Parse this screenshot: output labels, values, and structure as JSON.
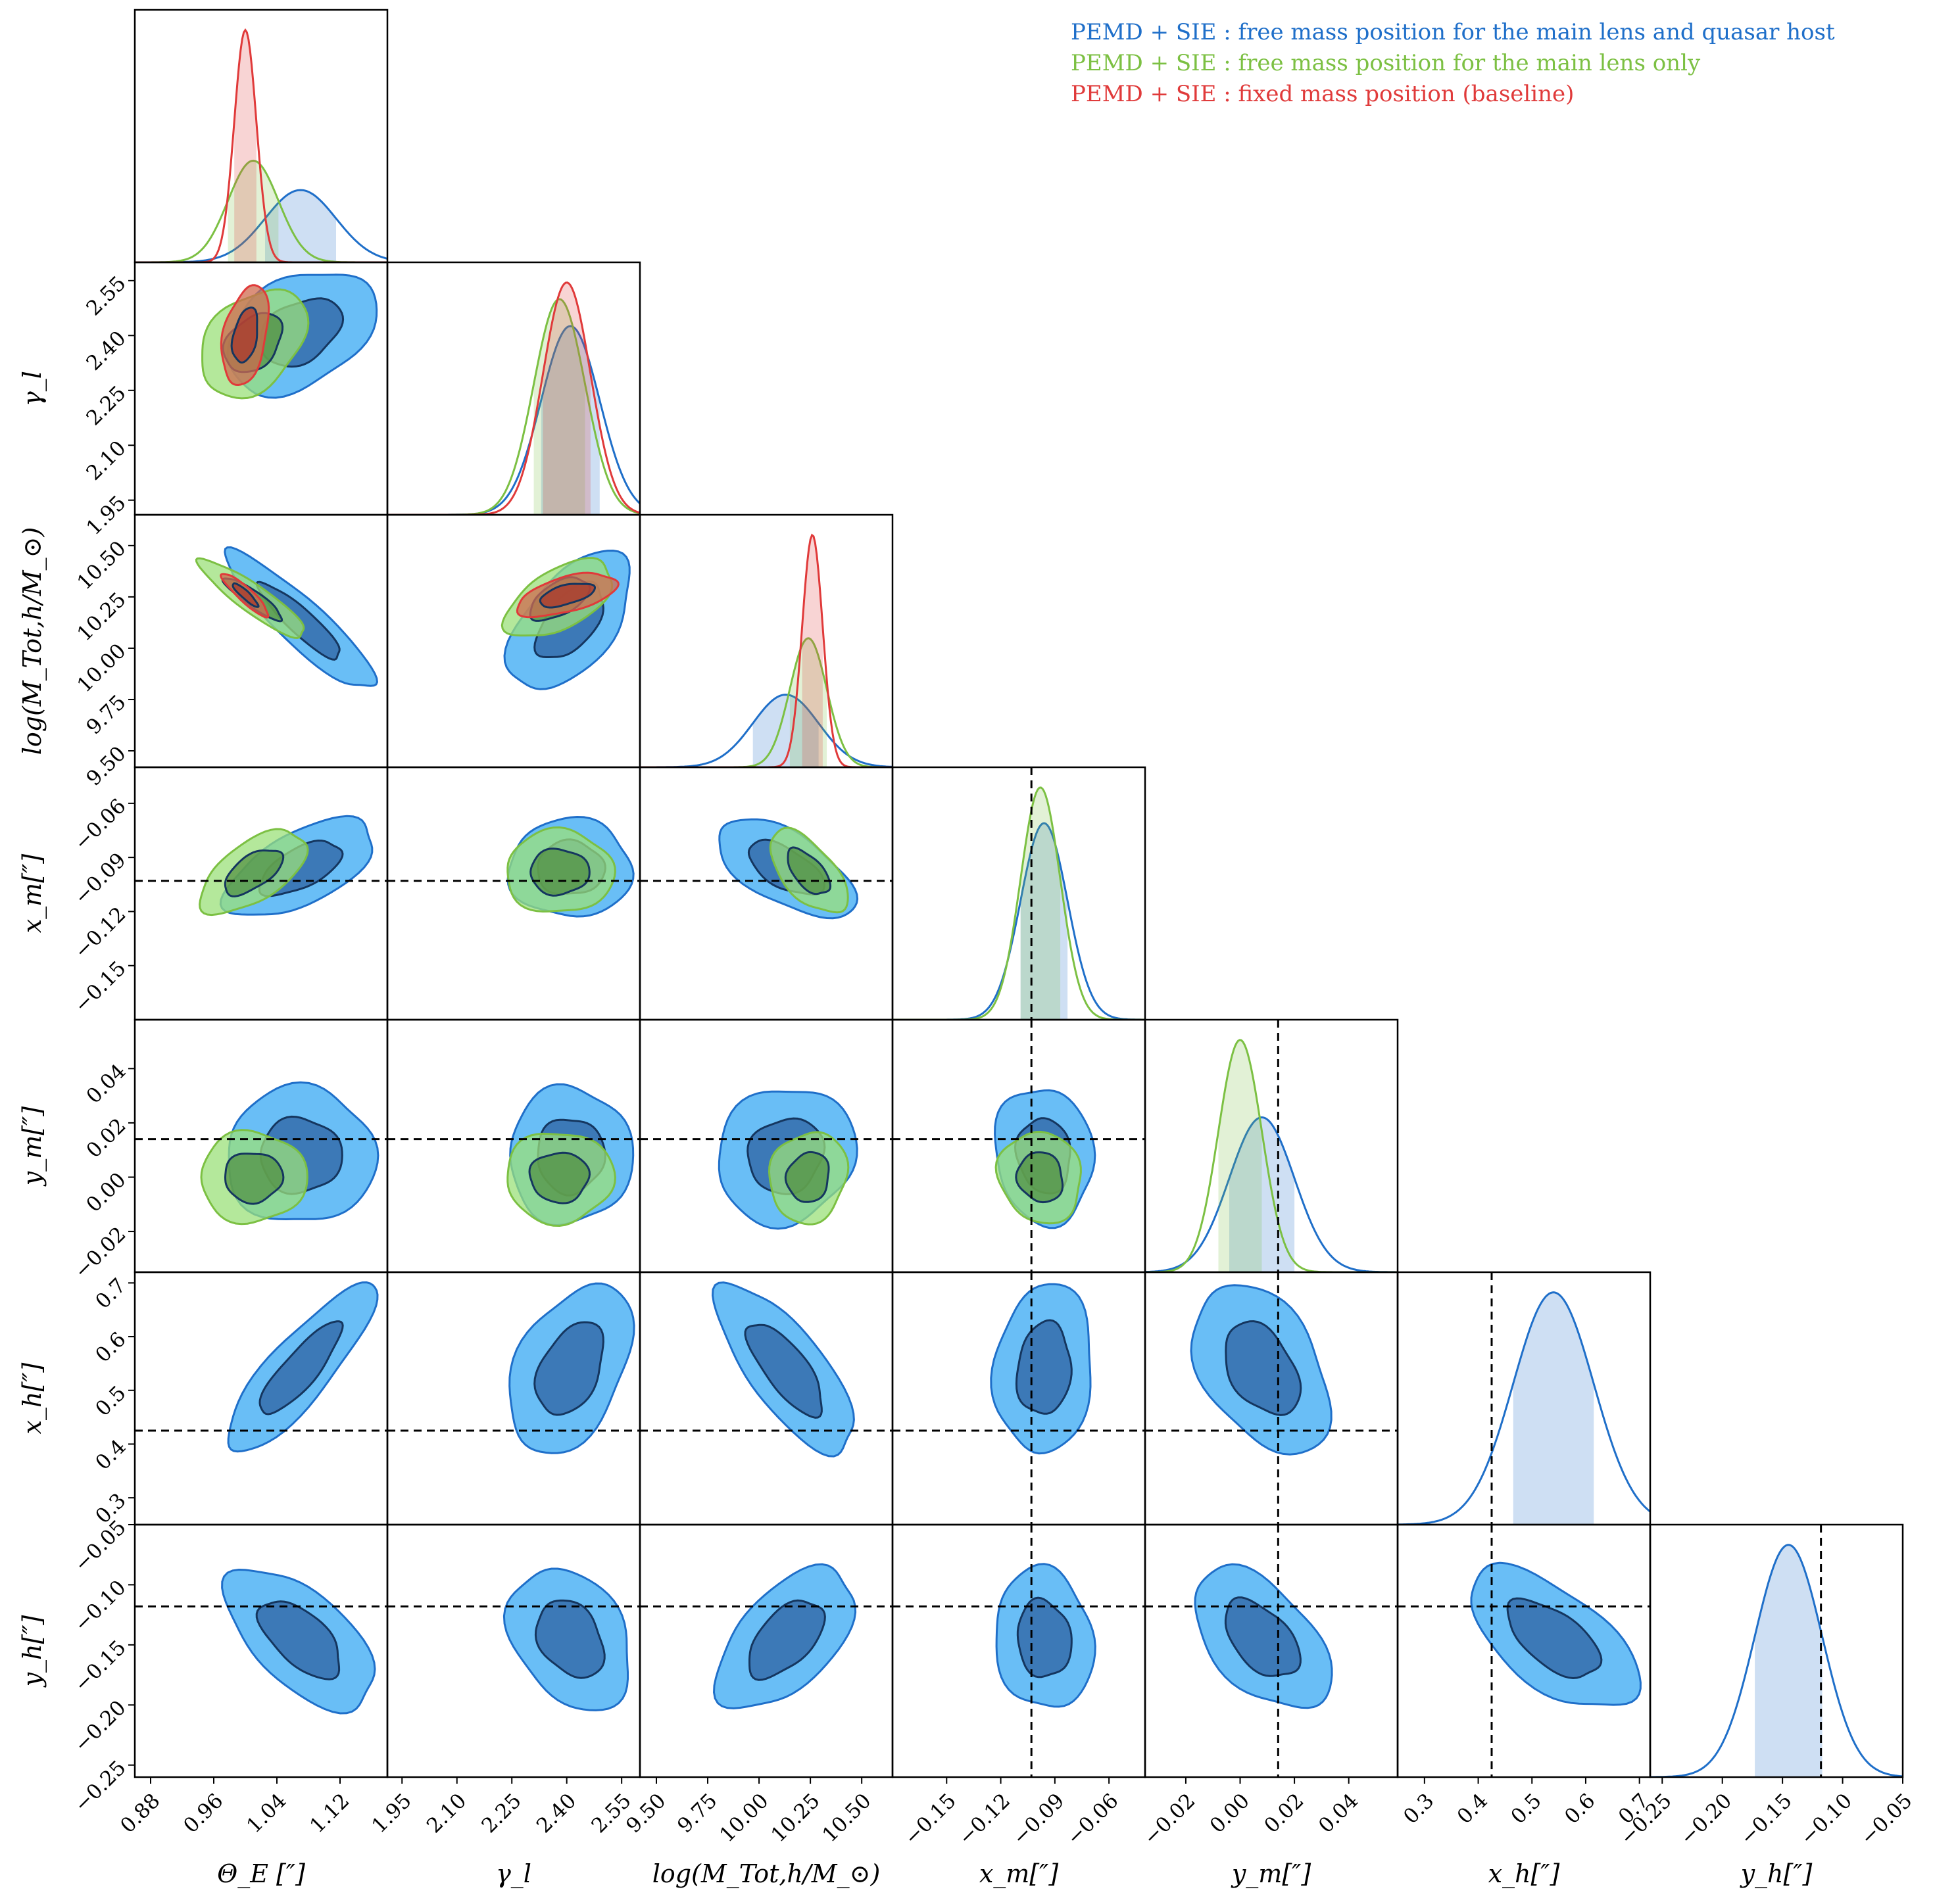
{
  "chart_data": {
    "type": "corner",
    "parameters": [
      {
        "key": "theta_E",
        "label": "Θ_E [″]",
        "ticks": [
          "0.88",
          "0.96",
          "1.04",
          "1.12"
        ],
        "tick_values": [
          0.88,
          0.96,
          1.04,
          1.12
        ],
        "range": [
          0.86,
          1.18
        ]
      },
      {
        "key": "gamma_l",
        "label": "γ_l",
        "ticks": [
          "1.95",
          "2.10",
          "2.25",
          "2.40",
          "2.55"
        ],
        "tick_values": [
          1.95,
          2.1,
          2.25,
          2.4,
          2.55
        ],
        "range": [
          1.91,
          2.6
        ]
      },
      {
        "key": "logM",
        "label": "log(M_Tot,h/M_⊙)",
        "ticks": [
          "9.50",
          "9.75",
          "10.00",
          "10.25",
          "10.50"
        ],
        "tick_values": [
          9.5,
          9.75,
          10.0,
          10.25,
          10.5
        ],
        "range": [
          9.42,
          10.65
        ]
      },
      {
        "key": "x_m",
        "label": "x_m[″]",
        "ticks": [
          "−0.15",
          "−0.12",
          "−0.09",
          "−0.06"
        ],
        "tick_values": [
          -0.15,
          -0.12,
          -0.09,
          -0.06
        ],
        "range": [
          -0.18,
          -0.04
        ]
      },
      {
        "key": "y_m",
        "label": "y_m[″]",
        "ticks": [
          "−0.02",
          "0.00",
          "0.02",
          "0.04"
        ],
        "tick_values": [
          -0.02,
          0.0,
          0.02,
          0.04
        ],
        "range": [
          -0.035,
          0.058
        ]
      },
      {
        "key": "x_h",
        "label": "x_h[″]",
        "ticks": [
          "0.3",
          "0.4",
          "0.5",
          "0.6",
          "0.7"
        ],
        "tick_values": [
          0.3,
          0.4,
          0.5,
          0.6,
          0.7
        ],
        "range": [
          0.25,
          0.72
        ]
      },
      {
        "key": "y_h",
        "label": "y_h[″]",
        "ticks": [
          "−0.25",
          "−0.20",
          "−0.15",
          "−0.10",
          "−0.05"
        ],
        "tick_values": [
          -0.25,
          -0.2,
          -0.15,
          -0.1,
          -0.05
        ],
        "range": [
          -0.26,
          -0.05
        ]
      }
    ],
    "truth_values": {
      "x_m": -0.103,
      "y_m": 0.014,
      "x_h": 0.425,
      "y_h": -0.118
    },
    "series": [
      {
        "name": "PEMD + SIE : free mass position for the main lens and quasar host",
        "color": "#1f6fc9",
        "fill": "#4fb3f5",
        "params": [
          "theta_E",
          "gamma_l",
          "logM",
          "x_m",
          "y_m",
          "x_h",
          "y_h"
        ],
        "mean": {
          "theta_E": 1.07,
          "gamma_l": 2.41,
          "logM": 10.13,
          "x_m": -0.096,
          "y_m": 0.008,
          "x_h": 0.54,
          "y_h": -0.145
        },
        "sigma": {
          "theta_E": 0.045,
          "gamma_l": 0.08,
          "logM": 0.16,
          "x_m": 0.013,
          "y_m": 0.012,
          "x_h": 0.075,
          "y_h": 0.028
        }
      },
      {
        "name": "PEMD + SIE : free mass position for the main lens only",
        "color": "#7cc043",
        "fill": "#9be07a",
        "params": [
          "theta_E",
          "gamma_l",
          "logM",
          "x_m",
          "y_m"
        ],
        "mean": {
          "theta_E": 1.01,
          "gamma_l": 2.38,
          "logM": 10.24,
          "x_m": -0.098,
          "y_m": 0.0
        },
        "sigma": {
          "theta_E": 0.032,
          "gamma_l": 0.07,
          "logM": 0.09,
          "x_m": 0.011,
          "y_m": 0.008
        }
      },
      {
        "name": "PEMD + SIE : fixed mass position (baseline)",
        "color": "#e03a3a",
        "fill": "#cf6b4f",
        "params": [
          "theta_E",
          "gamma_l",
          "logM"
        ],
        "mean": {
          "theta_E": 1.0,
          "gamma_l": 2.4,
          "logM": 10.26
        },
        "sigma": {
          "theta_E": 0.014,
          "gamma_l": 0.065,
          "logM": 0.05
        }
      }
    ],
    "legend_position": "top-right"
  }
}
